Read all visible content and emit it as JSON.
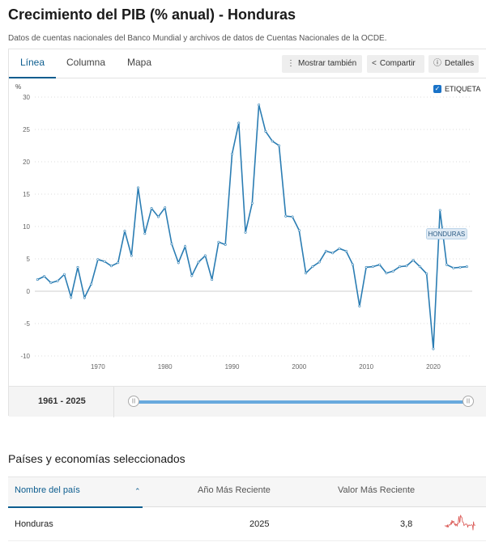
{
  "page": {
    "title": "Crecimiento del PIB (% anual) - Honduras",
    "subtitle": "Datos de cuentas nacionales del Banco Mundial y archivos de datos de Cuentas Nacionales de la OCDE."
  },
  "tabs": [
    {
      "label": "Línea",
      "active": true
    },
    {
      "label": "Columna",
      "active": false
    },
    {
      "label": "Mapa",
      "active": false
    }
  ],
  "toolbar": {
    "show_also": "Mostrar también",
    "share": "Compartir",
    "details": "Detalles"
  },
  "legend": {
    "label": "ETIQUETA",
    "checked": true
  },
  "colors": {
    "accent": "#0c5d8f",
    "line": "#2b7db3",
    "track": "#68a9dd",
    "sparkline": "#d9534f"
  },
  "range": {
    "label": "1961 - 2025"
  },
  "section": {
    "title": "Países y economías seleccionados"
  },
  "table": {
    "headers": {
      "name": "Nombre del país",
      "year": "Año Más Reciente",
      "value": "Valor Más Reciente"
    },
    "rows": [
      {
        "name": "Honduras",
        "year": "2025",
        "value": "3,8"
      }
    ]
  },
  "chart_data": {
    "type": "line",
    "ylabel": "%",
    "ylim": [
      -10,
      30
    ],
    "y_ticks": [
      30,
      25,
      20,
      15,
      10,
      5,
      0,
      -5,
      -10
    ],
    "x_ticks": [
      1970,
      1980,
      1990,
      2000,
      2010,
      2020
    ],
    "x_tick_labels": [
      "1970",
      "1980",
      "1990",
      "2000",
      "2010",
      "2020"
    ],
    "grid": true,
    "series_label": "HONDURAS",
    "series": [
      {
        "name": "HONDURAS",
        "x": [
          1961,
          1962,
          1963,
          1964,
          1965,
          1966,
          1967,
          1968,
          1969,
          1970,
          1971,
          1972,
          1973,
          1974,
          1975,
          1976,
          1977,
          1978,
          1979,
          1980,
          1981,
          1982,
          1983,
          1984,
          1985,
          1986,
          1987,
          1988,
          1989,
          1990,
          1991,
          1992,
          1993,
          1994,
          1995,
          1996,
          1997,
          1998,
          1999,
          2000,
          2001,
          2002,
          2003,
          2004,
          2005,
          2006,
          2007,
          2008,
          2009,
          2010,
          2011,
          2012,
          2013,
          2014,
          2015,
          2016,
          2017,
          2018,
          2019,
          2020,
          2021,
          2022,
          2023,
          2024,
          2025
        ],
        "values": [
          1.8,
          2.3,
          1.3,
          1.6,
          2.6,
          -0.9,
          3.7,
          -1.0,
          1.1,
          4.9,
          4.6,
          3.9,
          4.4,
          9.3,
          5.5,
          16.0,
          8.9,
          12.8,
          11.5,
          12.9,
          7.3,
          4.4,
          6.9,
          2.4,
          4.5,
          5.5,
          1.8,
          7.6,
          7.2,
          21.2,
          26.0,
          9.1,
          13.6,
          28.8,
          24.7,
          23.2,
          22.5,
          11.6,
          11.5,
          9.4,
          2.8,
          3.8,
          4.5,
          6.2,
          5.9,
          6.6,
          6.2,
          4.1,
          -2.3,
          3.7,
          3.8,
          4.1,
          2.8,
          3.1,
          3.8,
          3.9,
          4.8,
          3.8,
          2.7,
          -8.9,
          12.5,
          4.1,
          3.6,
          3.7,
          3.8
        ]
      }
    ]
  }
}
